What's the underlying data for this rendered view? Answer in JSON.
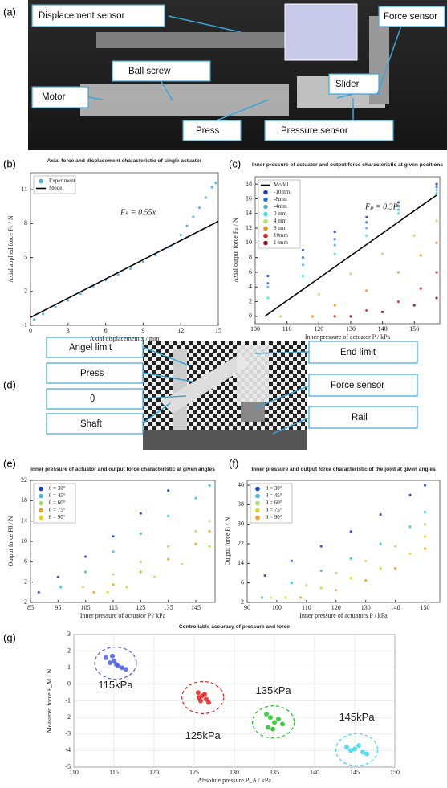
{
  "panel_labels": [
    "(a)",
    "(b)",
    "(c)",
    "(d)",
    "(e)",
    "(f)",
    "(g)"
  ],
  "photo_a": {
    "callouts": [
      "Displacement sensor",
      "Ball screw",
      "Motor",
      "Press",
      "Pressure sensor",
      "Slider",
      "Force sensor"
    ]
  },
  "photo_d": {
    "callouts": [
      "Angel limit",
      "Press",
      "θ",
      "Shaft",
      "End limit",
      "Force sensor",
      "Rail"
    ]
  },
  "chart_data": [
    {
      "type": "scatter",
      "title": "Axial force and displacement characteristic of single actuator",
      "xlabel": "Axial displacement x / mm",
      "ylabel": "Axial applied force Fₖ / N",
      "annotation": "Fₖ = 0.55x",
      "xlim": [
        0,
        15
      ],
      "xticks": [
        0,
        3,
        6,
        9,
        12,
        15
      ],
      "ylim": [
        -1,
        12.5
      ],
      "yticks": [
        -1,
        2,
        5,
        8,
        11
      ],
      "grid": false,
      "legend": "upper left",
      "series": [
        {
          "name": "Experiment",
          "color": "#3cb4e6",
          "x": [
            0.3,
            1,
            2,
            3,
            4,
            5,
            6,
            7,
            8,
            9,
            10,
            11,
            12,
            12.5,
            13,
            13.5,
            14,
            14.5,
            14.8
          ],
          "values": [
            -0.5,
            0,
            0.6,
            1.2,
            1.8,
            2.4,
            3.0,
            3.5,
            4.0,
            4.6,
            5.2,
            5.9,
            7.0,
            7.8,
            8.6,
            9.4,
            10.3,
            11.2,
            11.6
          ]
        },
        {
          "name": "Model",
          "type": "line",
          "color": "#000000",
          "x": [
            0,
            15
          ],
          "values": [
            -0.3,
            8.2
          ]
        }
      ]
    },
    {
      "type": "scatter",
      "title": "Inner pressure of actuator and output force characteristic at given positions",
      "xlabel": "Inner pressure of actuator P / kPa",
      "ylabel": "Axial output force Fₚ / N",
      "annotation": "Fₚ = 0.3P",
      "xlim": [
        100,
        158
      ],
      "xticks": [
        100,
        110,
        120,
        130,
        140,
        150
      ],
      "ylim": [
        -1,
        19
      ],
      "yticks": [
        0,
        2,
        4,
        6,
        8,
        10,
        12,
        14,
        16,
        18
      ],
      "grid": false,
      "legend": "upper left",
      "series": [
        {
          "name": "Model",
          "type": "line",
          "color": "#000000",
          "x": [
            103,
            157
          ],
          "values": [
            0,
            16.5
          ]
        },
        {
          "name": "-10mm",
          "color": "#1f3fbf",
          "x": [
            104,
            115,
            125,
            135,
            145,
            157
          ],
          "values": [
            5.5,
            9,
            11.5,
            13.5,
            15.5,
            18
          ]
        },
        {
          "name": "-8mm",
          "color": "#2f6fe0",
          "x": [
            104,
            115,
            125,
            135,
            145,
            157
          ],
          "values": [
            4.5,
            8,
            10.5,
            12.8,
            15,
            17.6
          ]
        },
        {
          "name": "-4mm",
          "color": "#4fb0e8",
          "x": [
            104,
            115,
            125,
            135,
            145,
            157
          ],
          "values": [
            4,
            7,
            9.7,
            12,
            14.5,
            17.2
          ]
        },
        {
          "name": "0 mm",
          "color": "#40e0e0",
          "x": [
            104,
            115,
            125,
            135,
            145,
            157
          ],
          "values": [
            2.5,
            5.5,
            8.5,
            11,
            14,
            16.8
          ]
        },
        {
          "name": "4 mm",
          "color": "#b8e060",
          "x": [
            108,
            120,
            130,
            140,
            150,
            157
          ],
          "values": [
            0,
            3,
            5.8,
            8.5,
            11,
            13
          ]
        },
        {
          "name": "8 mm",
          "color": "#f09020",
          "x": [
            118,
            125,
            135,
            145,
            152,
            157
          ],
          "values": [
            0,
            1.5,
            3.5,
            6,
            8.3,
            10
          ]
        },
        {
          "name": "10mm",
          "color": "#e02020",
          "x": [
            125,
            135,
            145,
            152,
            157
          ],
          "values": [
            0,
            0.8,
            2,
            3.8,
            6
          ]
        },
        {
          "name": "14mm",
          "color": "#8b1010",
          "x": [
            130,
            140,
            150,
            157
          ],
          "values": [
            0,
            0.6,
            1.5,
            2.5
          ]
        }
      ]
    },
    {
      "type": "scatter",
      "title": "inner pressure of actuator and output force characteristic at given angles",
      "xlabel": "Inner pressure of actuator P / kPa",
      "ylabel": "Output force Fθ / N",
      "xlim": [
        85,
        152
      ],
      "xticks": [
        85,
        95,
        105,
        115,
        125,
        135,
        145
      ],
      "ylim": [
        -2,
        22
      ],
      "yticks": [
        -2,
        2,
        6,
        10,
        14,
        18,
        22
      ],
      "grid": false,
      "legend": "upper left",
      "series": [
        {
          "name": "θ = 30°",
          "color": "#1a3fd0",
          "x": [
            88,
            95,
            105,
            115,
            125,
            135
          ],
          "values": [
            0,
            3,
            7,
            11,
            15.5,
            20
          ]
        },
        {
          "name": "θ = 45°",
          "color": "#30c0e8",
          "x": [
            96,
            105,
            115,
            125,
            135,
            145,
            150
          ],
          "values": [
            1,
            4,
            8,
            11.5,
            15,
            18.5,
            21
          ]
        },
        {
          "name": "θ = 60°",
          "color": "#a8e070",
          "x": [
            104,
            115,
            125,
            135,
            145,
            150
          ],
          "values": [
            1,
            3.5,
            6,
            9,
            12,
            14
          ]
        },
        {
          "name": "θ = 75°",
          "color": "#f0a020",
          "x": [
            108,
            115,
            125,
            135,
            145,
            150
          ],
          "values": [
            0,
            1.5,
            4,
            6.5,
            9.5,
            12
          ]
        },
        {
          "name": "θ = 90°",
          "color": "#e8d020",
          "x": [
            113,
            120,
            130,
            140,
            150
          ],
          "values": [
            0,
            1,
            3,
            5.5,
            9
          ]
        }
      ]
    },
    {
      "type": "scatter",
      "title": "Inner pressure and output force characteristic of the joint at given angles",
      "xlabel": "Inner pressure of actuators P / kPa",
      "ylabel": "Output force Fⱼ / N",
      "xlim": [
        90,
        155
      ],
      "xticks": [
        90,
        100,
        110,
        120,
        130,
        140,
        150
      ],
      "ylim": [
        -2,
        48
      ],
      "yticks": [
        -2,
        6,
        14,
        22,
        30,
        38,
        46
      ],
      "grid": false,
      "legend": "upper left",
      "series": [
        {
          "name": "θ = 30°",
          "color": "#1a3fd0",
          "x": [
            96,
            105,
            115,
            125,
            135,
            145,
            150
          ],
          "values": [
            9,
            15,
            21,
            27,
            34,
            42,
            46
          ]
        },
        {
          "name": "θ = 45°",
          "color": "#30c0e8",
          "x": [
            95,
            105,
            115,
            125,
            135,
            145,
            150
          ],
          "values": [
            0,
            6,
            11,
            16,
            22,
            29,
            35
          ]
        },
        {
          "name": "θ = 60°",
          "color": "#a8e070",
          "x": [
            98,
            110,
            120,
            130,
            140,
            150
          ],
          "values": [
            0,
            5,
            10,
            15,
            21,
            30
          ]
        },
        {
          "name": "θ = 75°",
          "color": "#e8d020",
          "x": [
            103,
            115,
            125,
            135,
            145,
            150
          ],
          "values": [
            0,
            4,
            8,
            12,
            18,
            25
          ]
        },
        {
          "name": "θ = 90°",
          "color": "#f0a020",
          "x": [
            108,
            120,
            130,
            140,
            150
          ],
          "values": [
            0,
            3,
            7,
            12,
            20
          ]
        }
      ]
    },
    {
      "type": "scatter",
      "title": "Controllable accuracy of pressure and force",
      "xlabel": "Absolute pressure P_A / kPa",
      "ylabel": "Measured force F_M / N",
      "xlim": [
        110,
        150
      ],
      "xticks": [
        110,
        115,
        120,
        125,
        130,
        135,
        140,
        145,
        150
      ],
      "ylim": [
        -5,
        3
      ],
      "yticks": [
        -5,
        -4,
        -3,
        -2,
        -1,
        0,
        1,
        2,
        3
      ],
      "grid": true,
      "series": [
        {
          "name": "115kPa",
          "color": "#4a5ee8",
          "x": [
            114,
            114.5,
            115,
            115.5,
            116,
            114.8,
            115.3,
            116.5
          ],
          "values": [
            1.6,
            1.3,
            1.4,
            1.1,
            1.0,
            1.7,
            1.2,
            0.9
          ]
        },
        {
          "name": "125kPa",
          "color": "#e52020",
          "x": [
            125.5,
            126,
            126.5,
            125.8,
            126.3,
            126.8,
            125.6
          ],
          "values": [
            -0.5,
            -0.7,
            -0.9,
            -1.0,
            -0.6,
            -1.1,
            -0.8
          ]
        },
        {
          "name": "135kPa",
          "color": "#22c522",
          "x": [
            134,
            134.5,
            135,
            134.2,
            135.5,
            136,
            134.8
          ],
          "values": [
            -1.8,
            -2.0,
            -2.3,
            -2.6,
            -2.1,
            -2.4,
            -2.7
          ]
        },
        {
          "name": "145kPa",
          "color": "#40d8f0",
          "x": [
            144,
            145,
            146,
            144.5,
            145.5,
            146.5
          ],
          "values": [
            -3.8,
            -3.9,
            -4.1,
            -4.0,
            -3.7,
            -4.2
          ]
        }
      ]
    }
  ]
}
